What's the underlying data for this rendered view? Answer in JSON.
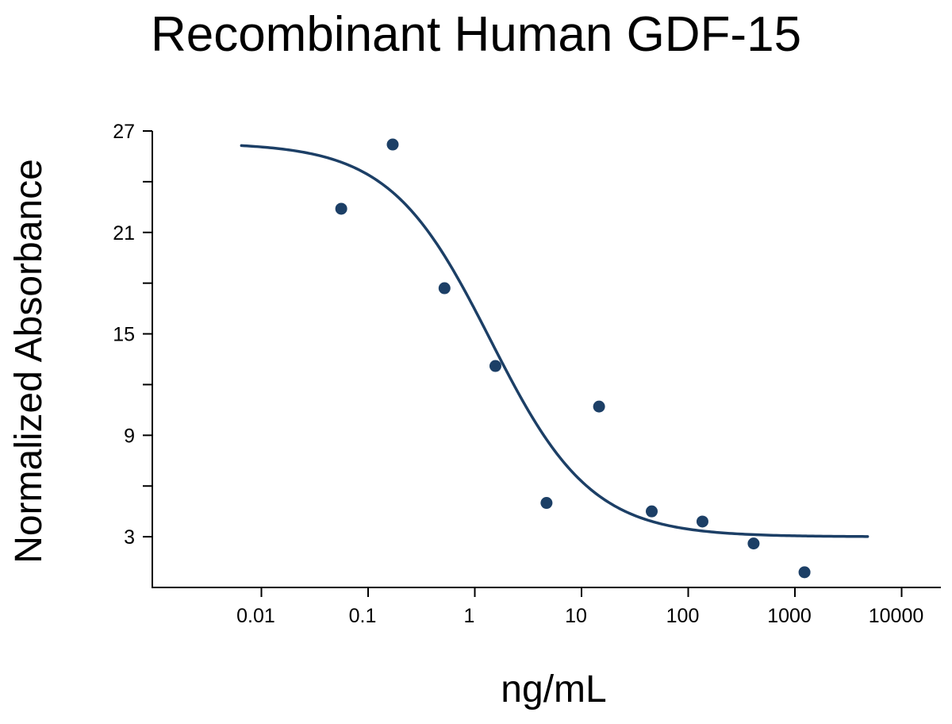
{
  "chart_data": {
    "type": "scatter",
    "title": "Recombinant Human GDF-15",
    "xlabel": "ng/mL",
    "ylabel": "Normalized Absorbance",
    "x_scale": "log",
    "xlim": [
      0.0015,
      30000
    ],
    "ylim": [
      0,
      27
    ],
    "x_ticks": [
      0.01,
      0.1,
      1,
      10,
      100,
      1000,
      10000
    ],
    "x_tick_labels": [
      "0.01",
      "0.1",
      "1",
      "10",
      "100",
      "1000",
      "10000"
    ],
    "y_ticks": [
      3,
      9,
      15,
      21,
      27
    ],
    "y_tick_labels": [
      "3",
      "9",
      "15",
      "21",
      "27"
    ],
    "y_minor_ticks": [
      6,
      12,
      18,
      24
    ],
    "grid": false,
    "legend": "none",
    "series": [
      {
        "kind": "points",
        "color": "#1c3f66",
        "points": [
          {
            "x": 0.056,
            "y": 22.4
          },
          {
            "x": 0.17,
            "y": 26.2
          },
          {
            "x": 0.52,
            "y": 17.7
          },
          {
            "x": 1.56,
            "y": 13.1
          },
          {
            "x": 4.7,
            "y": 5.0
          },
          {
            "x": 14.6,
            "y": 10.7
          },
          {
            "x": 45.5,
            "y": 4.5
          },
          {
            "x": 136,
            "y": 3.9
          },
          {
            "x": 410,
            "y": 2.6
          },
          {
            "x": 1230,
            "y": 0.9
          }
        ]
      },
      {
        "kind": "fit",
        "color": "#1c3f66",
        "model": "4PL",
        "top": 26.3,
        "bottom": 3.0,
        "ec50": 1.4,
        "hill": 0.92,
        "x_range": [
          0.0065,
          4800
        ]
      }
    ]
  }
}
